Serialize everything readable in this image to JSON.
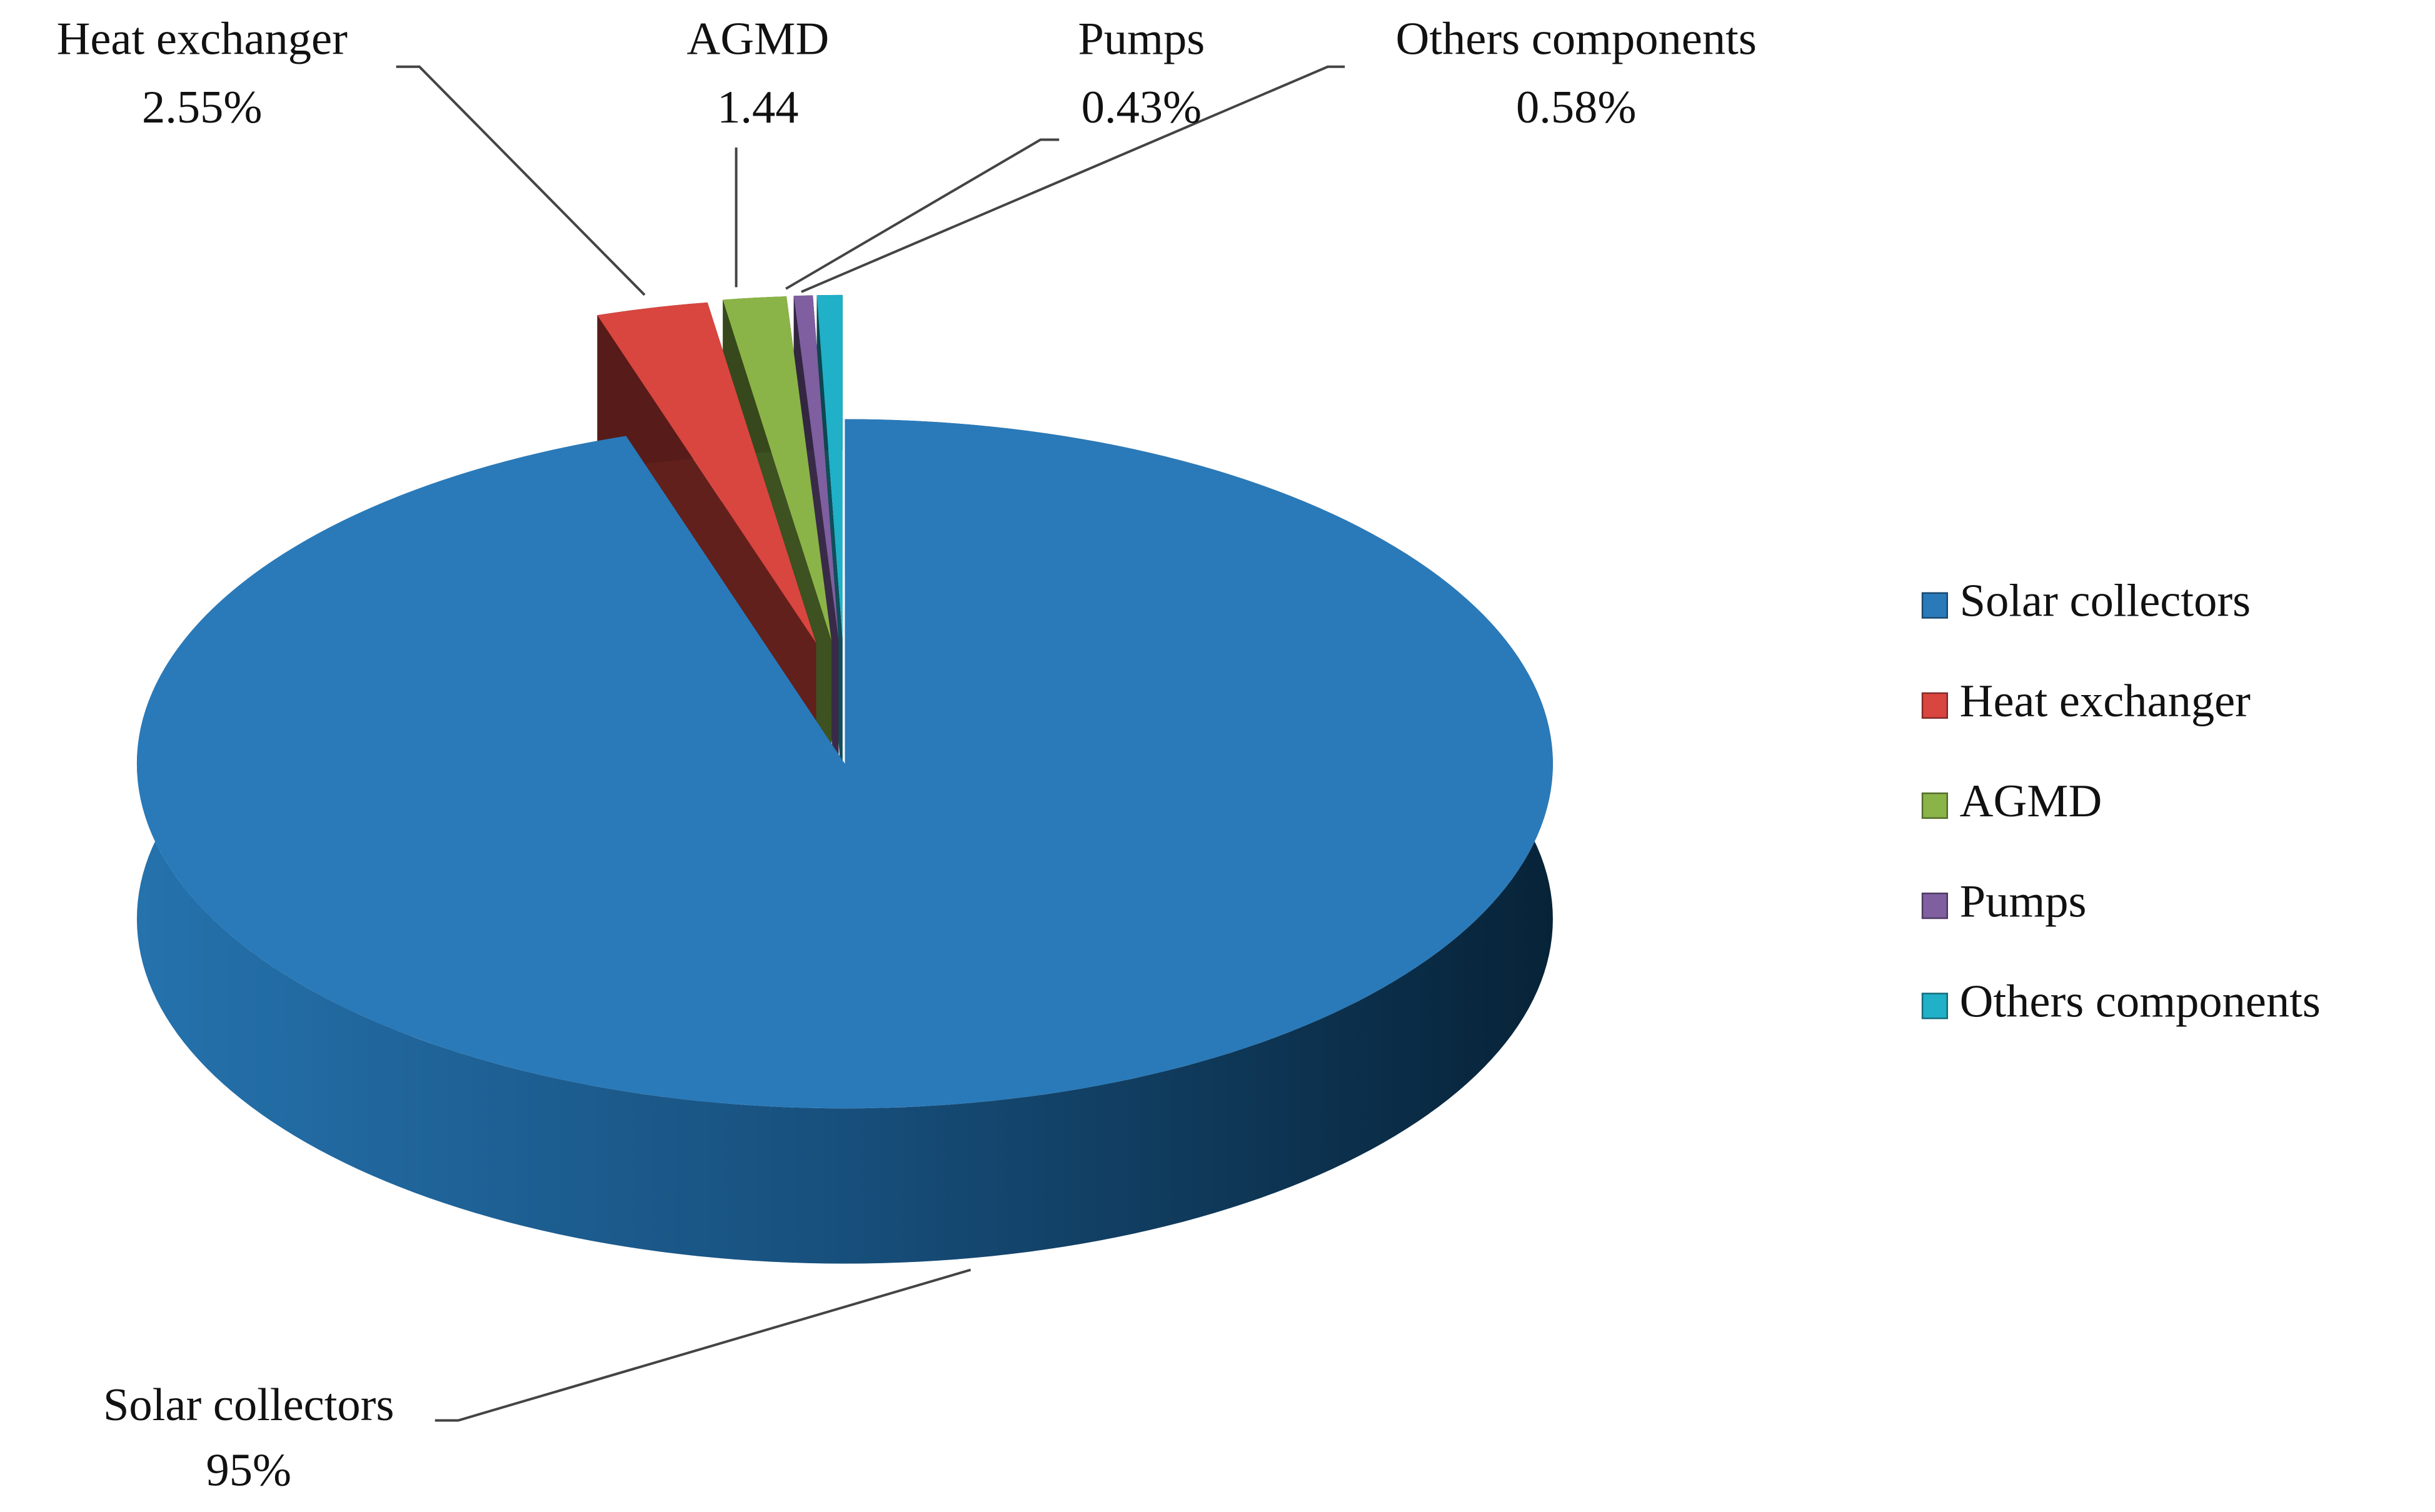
{
  "chart_data": {
    "type": "pie",
    "categories": [
      "Solar collectors",
      "Heat exchanger",
      "AGMD",
      "Pumps",
      "Others components"
    ],
    "values": [
      95,
      2.55,
      1.44,
      0.43,
      0.58
    ],
    "value_labels": [
      "95%",
      "2.55%",
      "1.44",
      "0.43%",
      "0.58%"
    ],
    "colors": [
      "#2a7ab9",
      "#d9463f",
      "#8ab447",
      "#7f5fa0",
      "#20b0c8"
    ],
    "legend": "right",
    "three_d": true
  }
}
